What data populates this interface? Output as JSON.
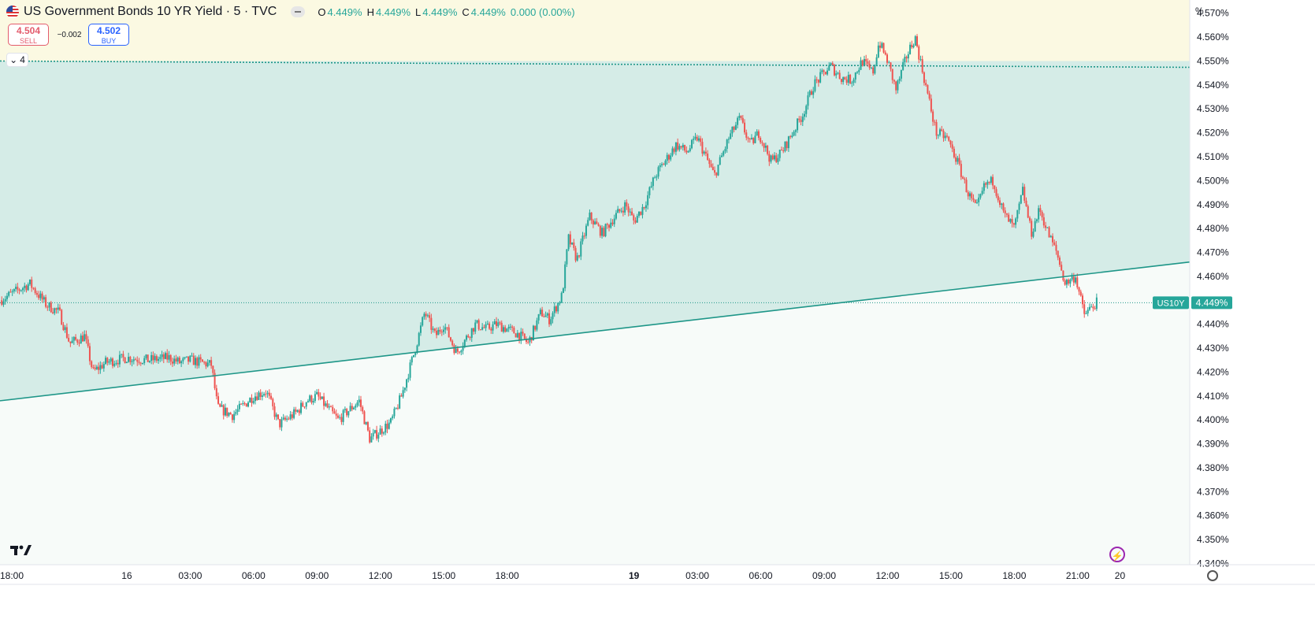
{
  "legend": {
    "title": "US Government Bonds 10 YR Yield · 5 · TVC",
    "ohlc": [
      {
        "key": "O",
        "value": "4.449%"
      },
      {
        "key": "H",
        "value": "4.449%"
      },
      {
        "key": "L",
        "value": "4.449%"
      },
      {
        "key": "C",
        "value": "4.449%"
      }
    ],
    "change": "0.000 (0.00%)"
  },
  "trade": {
    "sell_price": "4.504",
    "sell_label": "SELL",
    "spread": "−0.002",
    "buy_price": "4.502",
    "buy_label": "BUY"
  },
  "collapse_count": "4",
  "price_axis": {
    "unit": "%"
  },
  "price_tag": {
    "symbol": "US10Y",
    "value": "4.449%"
  },
  "colors": {
    "up": "#26a69a",
    "down": "#ef5350",
    "upper_zone": "#fbf9e2",
    "channel_fill": "#d5ece7",
    "lower_fill": "#f7fbf9",
    "trend_line": "#1e9688",
    "tag": "#26a69a"
  },
  "chart_data": {
    "type": "candlestick",
    "y_unit": "%",
    "y_ticks": [
      "4.340%",
      "4.350%",
      "4.360%",
      "4.370%",
      "4.380%",
      "4.390%",
      "4.400%",
      "4.410%",
      "4.420%",
      "4.430%",
      "4.440%",
      "4.450%",
      "4.460%",
      "4.470%",
      "4.480%",
      "4.490%",
      "4.500%",
      "4.510%",
      "4.520%",
      "4.530%",
      "4.540%",
      "4.550%",
      "4.560%",
      "4.570%"
    ],
    "ylim": [
      4.3395,
      4.5755
    ],
    "x_ticks": [
      {
        "label": "18:00",
        "hour": 0,
        "bold": false
      },
      {
        "label": "16",
        "hour": 6,
        "bold": false
      },
      {
        "label": "03:00",
        "hour": 9,
        "bold": false
      },
      {
        "label": "06:00",
        "hour": 12,
        "bold": false
      },
      {
        "label": "09:00",
        "hour": 15,
        "bold": false
      },
      {
        "label": "12:00",
        "hour": 18,
        "bold": false
      },
      {
        "label": "15:00",
        "hour": 21,
        "bold": false
      },
      {
        "label": "18:00",
        "hour": 24,
        "bold": false
      },
      {
        "label": "19",
        "hour": 30,
        "bold": true
      },
      {
        "label": "03:00",
        "hour": 33,
        "bold": false
      },
      {
        "label": "06:00",
        "hour": 36,
        "bold": false
      },
      {
        "label": "09:00",
        "hour": 39,
        "bold": false
      },
      {
        "label": "12:00",
        "hour": 42,
        "bold": false
      },
      {
        "label": "15:00",
        "hour": 45,
        "bold": false
      },
      {
        "label": "18:00",
        "hour": 48,
        "bold": false
      },
      {
        "label": "21:00",
        "hour": 51,
        "bold": false
      },
      {
        "label": "20",
        "hour": 53,
        "bold": false
      }
    ],
    "xlim_hours": [
      0,
      56.3
    ],
    "last_price": 4.449,
    "resistance_level": 4.55,
    "upper_zone": [
      4.55,
      4.5755
    ],
    "trend_line": [
      {
        "hour": 0,
        "value": 4.408
      },
      {
        "hour": 56.3,
        "value": 4.466
      }
    ],
    "anchors": [
      {
        "hour": 0.0,
        "value": 4.45
      },
      {
        "hour": 1.4,
        "value": 4.457
      },
      {
        "hour": 2.2,
        "value": 4.448
      },
      {
        "hour": 2.8,
        "value": 4.445
      },
      {
        "hour": 3.3,
        "value": 4.432
      },
      {
        "hour": 4.0,
        "value": 4.435
      },
      {
        "hour": 4.4,
        "value": 4.42
      },
      {
        "hour": 5.0,
        "value": 4.424
      },
      {
        "hour": 6.0,
        "value": 4.426
      },
      {
        "hour": 7.0,
        "value": 4.425
      },
      {
        "hour": 8.0,
        "value": 4.426
      },
      {
        "hour": 8.5,
        "value": 4.424
      },
      {
        "hour": 9.0,
        "value": 4.425
      },
      {
        "hour": 10.0,
        "value": 4.423
      },
      {
        "hour": 10.3,
        "value": 4.405
      },
      {
        "hour": 11.0,
        "value": 4.402
      },
      {
        "hour": 12.0,
        "value": 4.41
      },
      {
        "hour": 12.6,
        "value": 4.412
      },
      {
        "hour": 13.2,
        "value": 4.398
      },
      {
        "hour": 14.0,
        "value": 4.403
      },
      {
        "hour": 14.5,
        "value": 4.408
      },
      {
        "hour": 15.0,
        "value": 4.41
      },
      {
        "hour": 16.0,
        "value": 4.4
      },
      {
        "hour": 17.0,
        "value": 4.408
      },
      {
        "hour": 17.5,
        "value": 4.392
      },
      {
        "hour": 18.5,
        "value": 4.399
      },
      {
        "hour": 19.0,
        "value": 4.41
      },
      {
        "hour": 19.6,
        "value": 4.428
      },
      {
        "hour": 20.1,
        "value": 4.445
      },
      {
        "hour": 20.6,
        "value": 4.435
      },
      {
        "hour": 21.0,
        "value": 4.44
      },
      {
        "hour": 21.6,
        "value": 4.428
      },
      {
        "hour": 22.5,
        "value": 4.44
      },
      {
        "hour": 23.0,
        "value": 4.438
      },
      {
        "hour": 23.5,
        "value": 4.44
      },
      {
        "hour": 24.5,
        "value": 4.436
      },
      {
        "hour": 25.0,
        "value": 4.432
      },
      {
        "hour": 25.6,
        "value": 4.445
      },
      {
        "hour": 26.0,
        "value": 4.442
      },
      {
        "hour": 26.6,
        "value": 4.452
      },
      {
        "hour": 26.9,
        "value": 4.476
      },
      {
        "hour": 27.3,
        "value": 4.467
      },
      {
        "hour": 27.9,
        "value": 4.485
      },
      {
        "hour": 28.5,
        "value": 4.478
      },
      {
        "hour": 29.0,
        "value": 4.484
      },
      {
        "hour": 29.6,
        "value": 4.49
      },
      {
        "hour": 30.0,
        "value": 4.483
      },
      {
        "hour": 30.5,
        "value": 4.49
      },
      {
        "hour": 31.0,
        "value": 4.502
      },
      {
        "hour": 32.0,
        "value": 4.515
      },
      {
        "hour": 32.5,
        "value": 4.512
      },
      {
        "hour": 33.0,
        "value": 4.518
      },
      {
        "hour": 33.8,
        "value": 4.502
      },
      {
        "hour": 34.5,
        "value": 4.518
      },
      {
        "hour": 35.0,
        "value": 4.526
      },
      {
        "hour": 35.5,
        "value": 4.515
      },
      {
        "hour": 35.9,
        "value": 4.52
      },
      {
        "hour": 36.5,
        "value": 4.508
      },
      {
        "hour": 37.0,
        "value": 4.512
      },
      {
        "hour": 37.5,
        "value": 4.52
      },
      {
        "hour": 38.0,
        "value": 4.528
      },
      {
        "hour": 38.5,
        "value": 4.54
      },
      {
        "hour": 39.0,
        "value": 4.545
      },
      {
        "hour": 39.3,
        "value": 4.548
      },
      {
        "hour": 39.8,
        "value": 4.543
      },
      {
        "hour": 40.3,
        "value": 4.542
      },
      {
        "hour": 40.8,
        "value": 4.55
      },
      {
        "hour": 41.3,
        "value": 4.545
      },
      {
        "hour": 41.6,
        "value": 4.558
      },
      {
        "hour": 42.0,
        "value": 4.55
      },
      {
        "hour": 42.4,
        "value": 4.538
      },
      {
        "hour": 42.9,
        "value": 4.552
      },
      {
        "hour": 43.3,
        "value": 4.56
      },
      {
        "hour": 43.8,
        "value": 4.54
      },
      {
        "hour": 44.3,
        "value": 4.52
      },
      {
        "hour": 44.8,
        "value": 4.518
      },
      {
        "hour": 45.3,
        "value": 4.508
      },
      {
        "hour": 45.8,
        "value": 4.495
      },
      {
        "hour": 46.2,
        "value": 4.488
      },
      {
        "hour": 46.6,
        "value": 4.498
      },
      {
        "hour": 47.0,
        "value": 4.5
      },
      {
        "hour": 47.5,
        "value": 4.486
      },
      {
        "hour": 48.0,
        "value": 4.48
      },
      {
        "hour": 48.4,
        "value": 4.496
      },
      {
        "hour": 48.8,
        "value": 4.478
      },
      {
        "hour": 49.2,
        "value": 4.488
      },
      {
        "hour": 49.6,
        "value": 4.478
      },
      {
        "hour": 50.0,
        "value": 4.47
      },
      {
        "hour": 50.4,
        "value": 4.457
      },
      {
        "hour": 50.9,
        "value": 4.46
      },
      {
        "hour": 51.3,
        "value": 4.444
      },
      {
        "hour": 51.9,
        "value": 4.449
      }
    ],
    "bar_interval_hours": 0.0833
  }
}
